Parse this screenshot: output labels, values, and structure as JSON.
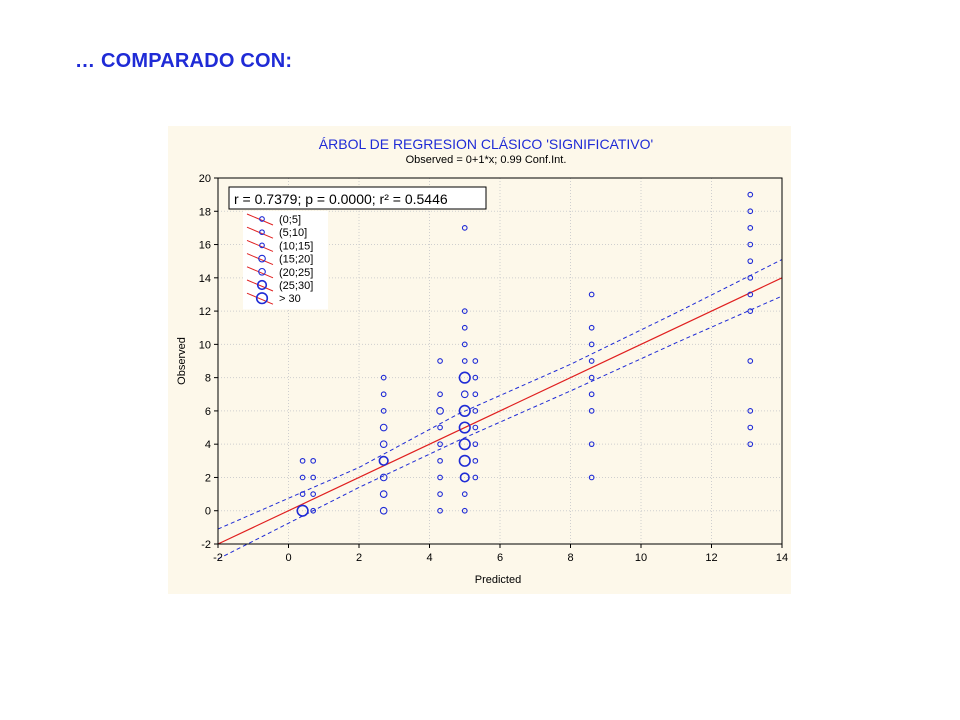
{
  "slide": {
    "title": "… COMPARADO CON:"
  },
  "chart_data": {
    "type": "scatter",
    "title": "ÁRBOL DE REGRESION CLÁSICO 'SIGNIFICATIVO'",
    "subtitle": "Observed = 0+1*x; 0.99 Conf.Int.",
    "xlabel": "Predicted",
    "ylabel": "Observed",
    "xlim": [
      -2,
      14
    ],
    "ylim": [
      -2,
      20
    ],
    "x_ticks": [
      -2,
      0,
      2,
      4,
      6,
      8,
      10,
      12,
      14
    ],
    "y_ticks": [
      -2,
      0,
      2,
      4,
      6,
      8,
      10,
      12,
      14,
      16,
      18,
      20
    ],
    "stats_label": "r = 0.7379; p = 0.0000; r² = 0.5446",
    "regression": {
      "intercept": 0,
      "slope": 1
    },
    "conf_band": {
      "upper": [
        [
          -2,
          -1.1
        ],
        [
          2,
          2.6
        ],
        [
          4.8,
          5.8
        ],
        [
          8,
          8.8
        ],
        [
          11,
          11.9
        ],
        [
          14,
          15.1
        ]
      ],
      "lower": [
        [
          -2,
          -2.9
        ],
        [
          2,
          1.4
        ],
        [
          4.8,
          4.2
        ],
        [
          8,
          7.2
        ],
        [
          11,
          10.1
        ],
        [
          14,
          12.9
        ]
      ]
    },
    "grid": true,
    "legend": {
      "placement": "top-left",
      "entries": [
        {
          "label": "(0;5]",
          "size": 1
        },
        {
          "label": "(5;10]",
          "size": 1
        },
        {
          "label": "(10;15]",
          "size": 1
        },
        {
          "label": "(15;20]",
          "size": 2
        },
        {
          "label": "(20;25]",
          "size": 2
        },
        {
          "label": "(25;30]",
          "size": 3
        },
        {
          "label": "> 30",
          "size": 4
        }
      ]
    },
    "points": [
      {
        "x": 0.4,
        "y": 3,
        "s": 1
      },
      {
        "x": 0.4,
        "y": 2,
        "s": 1
      },
      {
        "x": 0.4,
        "y": 1,
        "s": 1
      },
      {
        "x": 0.4,
        "y": 0,
        "s": 4
      },
      {
        "x": 0.7,
        "y": 3,
        "s": 1
      },
      {
        "x": 0.7,
        "y": 2,
        "s": 1
      },
      {
        "x": 0.7,
        "y": 1,
        "s": 1
      },
      {
        "x": 0.7,
        "y": 0,
        "s": 1
      },
      {
        "x": 2.7,
        "y": 8,
        "s": 1
      },
      {
        "x": 2.7,
        "y": 7,
        "s": 1
      },
      {
        "x": 2.7,
        "y": 6,
        "s": 1
      },
      {
        "x": 2.7,
        "y": 5,
        "s": 2
      },
      {
        "x": 2.7,
        "y": 4,
        "s": 2
      },
      {
        "x": 2.7,
        "y": 3,
        "s": 3
      },
      {
        "x": 2.7,
        "y": 2,
        "s": 2
      },
      {
        "x": 2.7,
        "y": 1,
        "s": 2
      },
      {
        "x": 2.7,
        "y": 0,
        "s": 2
      },
      {
        "x": 4.3,
        "y": 9,
        "s": 1
      },
      {
        "x": 4.3,
        "y": 7,
        "s": 1
      },
      {
        "x": 4.3,
        "y": 6,
        "s": 2
      },
      {
        "x": 4.3,
        "y": 5,
        "s": 1
      },
      {
        "x": 4.3,
        "y": 4,
        "s": 1
      },
      {
        "x": 4.3,
        "y": 3,
        "s": 1
      },
      {
        "x": 4.3,
        "y": 2,
        "s": 1
      },
      {
        "x": 4.3,
        "y": 1,
        "s": 1
      },
      {
        "x": 4.3,
        "y": 0,
        "s": 1
      },
      {
        "x": 5.0,
        "y": 17,
        "s": 1
      },
      {
        "x": 5.0,
        "y": 12,
        "s": 1
      },
      {
        "x": 5.0,
        "y": 11,
        "s": 1
      },
      {
        "x": 5.0,
        "y": 10,
        "s": 1
      },
      {
        "x": 5.0,
        "y": 9,
        "s": 1
      },
      {
        "x": 5.0,
        "y": 8,
        "s": 4
      },
      {
        "x": 5.0,
        "y": 7,
        "s": 2
      },
      {
        "x": 5.0,
        "y": 6,
        "s": 4
      },
      {
        "x": 5.0,
        "y": 5,
        "s": 4
      },
      {
        "x": 5.0,
        "y": 4,
        "s": 4
      },
      {
        "x": 5.0,
        "y": 3,
        "s": 4
      },
      {
        "x": 5.0,
        "y": 2,
        "s": 3
      },
      {
        "x": 5.0,
        "y": 1,
        "s": 1
      },
      {
        "x": 5.0,
        "y": 0,
        "s": 1
      },
      {
        "x": 5.3,
        "y": 9,
        "s": 1
      },
      {
        "x": 5.3,
        "y": 8,
        "s": 1
      },
      {
        "x": 5.3,
        "y": 7,
        "s": 1
      },
      {
        "x": 5.3,
        "y": 6,
        "s": 1
      },
      {
        "x": 5.3,
        "y": 5,
        "s": 1
      },
      {
        "x": 5.3,
        "y": 4,
        "s": 1
      },
      {
        "x": 5.3,
        "y": 3,
        "s": 1
      },
      {
        "x": 5.3,
        "y": 2,
        "s": 1
      },
      {
        "x": 8.6,
        "y": 13,
        "s": 1
      },
      {
        "x": 8.6,
        "y": 11,
        "s": 1
      },
      {
        "x": 8.6,
        "y": 10,
        "s": 1
      },
      {
        "x": 8.6,
        "y": 9,
        "s": 1
      },
      {
        "x": 8.6,
        "y": 8,
        "s": 1
      },
      {
        "x": 8.6,
        "y": 7,
        "s": 1
      },
      {
        "x": 8.6,
        "y": 6,
        "s": 1
      },
      {
        "x": 8.6,
        "y": 4,
        "s": 1
      },
      {
        "x": 8.6,
        "y": 2,
        "s": 1
      },
      {
        "x": 13.1,
        "y": 19,
        "s": 1
      },
      {
        "x": 13.1,
        "y": 18,
        "s": 1
      },
      {
        "x": 13.1,
        "y": 17,
        "s": 1
      },
      {
        "x": 13.1,
        "y": 16,
        "s": 1
      },
      {
        "x": 13.1,
        "y": 15,
        "s": 1
      },
      {
        "x": 13.1,
        "y": 14,
        "s": 1
      },
      {
        "x": 13.1,
        "y": 13,
        "s": 1
      },
      {
        "x": 13.1,
        "y": 12,
        "s": 1
      },
      {
        "x": 13.1,
        "y": 9,
        "s": 1
      },
      {
        "x": 13.1,
        "y": 6,
        "s": 1
      },
      {
        "x": 13.1,
        "y": 5,
        "s": 1
      },
      {
        "x": 13.1,
        "y": 4,
        "s": 1
      }
    ],
    "colors": {
      "points": "#1f2bd6",
      "regression": "#e02020",
      "conf_band": "#1f2bd6",
      "panel_bg": "#fdf8ea",
      "title": "#1f2bd6"
    }
  }
}
